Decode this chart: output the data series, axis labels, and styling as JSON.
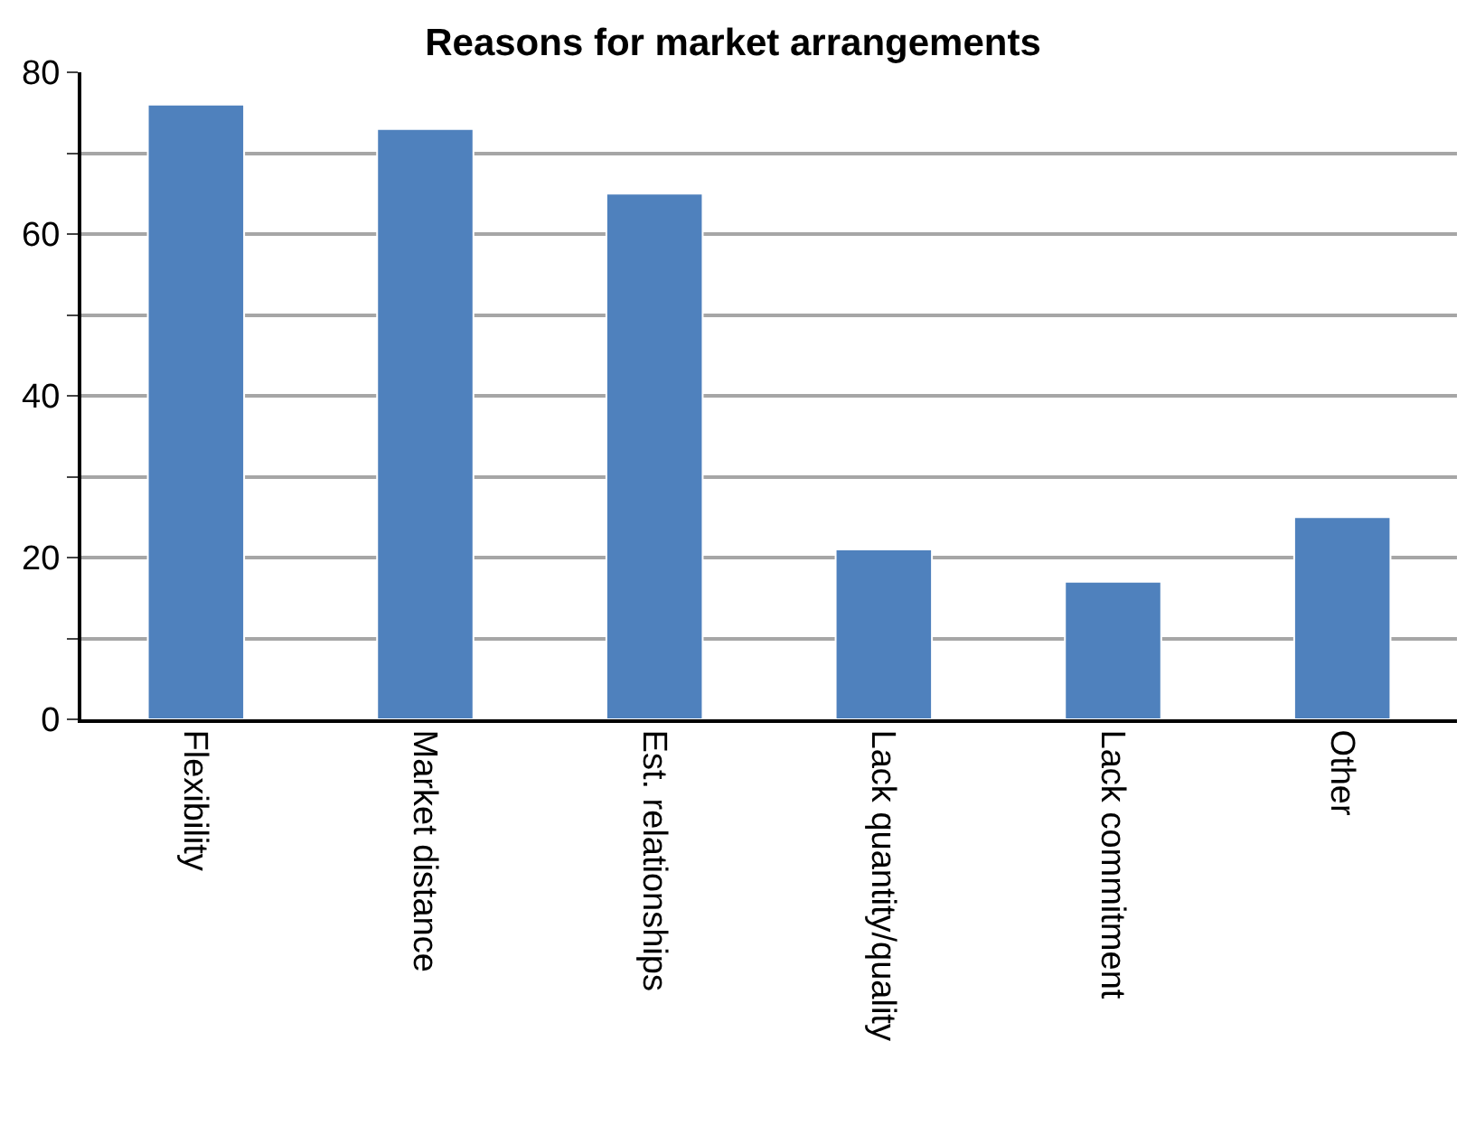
{
  "chart_data": {
    "type": "bar",
    "title": "Reasons for market arrangements",
    "categories": [
      "Flexibility",
      "Market distance",
      "Est. relationships",
      "Lack quantity/quality",
      "Lack commitment",
      "Other"
    ],
    "values": [
      76,
      73,
      65,
      21,
      17,
      25
    ],
    "color": "#4f81bd",
    "ylim": [
      0,
      80
    ],
    "yticks": [
      0,
      {
        "value": 10,
        "label": null
      },
      20,
      {
        "value": 30,
        "label": null
      },
      40,
      {
        "value": 50,
        "label": null
      },
      60,
      {
        "value": 70,
        "label": null
      },
      80
    ],
    "grid": "y"
  }
}
